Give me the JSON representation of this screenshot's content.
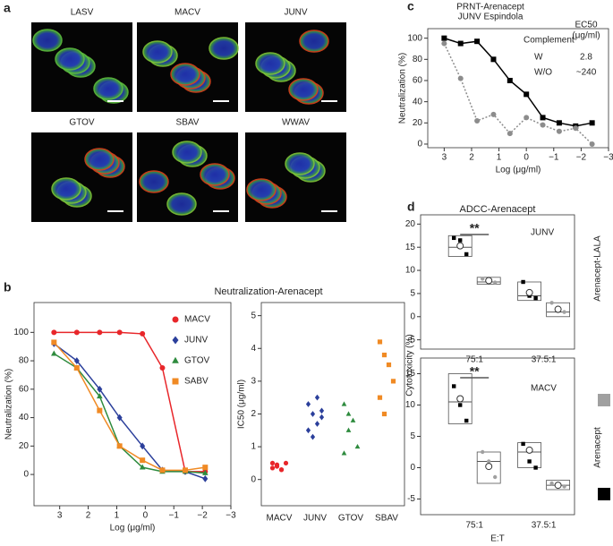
{
  "panel_labels": [
    "a",
    "b",
    "c",
    "d"
  ],
  "images": [
    "LASV",
    "MACV",
    "JUNV",
    "GTOV",
    "SBAV",
    "WWAV"
  ],
  "chart_data": [
    {
      "type": "line",
      "title": "Neutralization-Arenacept",
      "x_label": "Log (μg/ml)",
      "y_label": "Neutralization (%)",
      "x": [
        3.2,
        2.4,
        1.6,
        0.9,
        0.1,
        -0.6,
        -1.4,
        -2.1
      ],
      "xlim": [
        3.9,
        -3
      ],
      "xticks": [
        3,
        2,
        1,
        0,
        {
          "value": -1,
          "label": "−1"
        },
        {
          "value": -2,
          "label": "−2"
        },
        {
          "value": -3,
          "label": "−3"
        }
      ],
      "ylim": [
        -22,
        121
      ],
      "yticks": [
        0,
        20,
        40,
        60,
        80,
        100
      ],
      "series": [
        {
          "name": "MACV",
          "color": "#e8262a",
          "marker": "circle",
          "values": [
            100,
            100,
            100,
            100,
            99,
            75,
            2,
            2
          ]
        },
        {
          "name": "JUNV",
          "color": "#2b3f9b",
          "marker": "diamond",
          "values": [
            92,
            80,
            60,
            40,
            20,
            3,
            2,
            -3
          ]
        },
        {
          "name": "GTOV",
          "color": "#2e8b3e",
          "marker": "triangle",
          "values": [
            85,
            75,
            55,
            20,
            5,
            2,
            2,
            1
          ]
        },
        {
          "name": "SABV",
          "color": "#f08a24",
          "marker": "square",
          "values": [
            93,
            75,
            45,
            20,
            10,
            3,
            3,
            5
          ]
        }
      ]
    },
    {
      "type": "strip",
      "y_label": "IC50 (μg/ml)",
      "categories": [
        "MACV",
        "JUNV",
        "GTOV",
        "SBAV"
      ],
      "colors": [
        "#e8262a",
        "#2b3f9b",
        "#2e8b3e",
        "#f08a24"
      ],
      "markers": [
        "circle",
        "diamond",
        "triangle",
        "square"
      ],
      "ylim": [
        -0.8,
        5.4
      ],
      "yticks": [
        0,
        1,
        2,
        3,
        4,
        5
      ],
      "points": [
        [
          0.5,
          0.4,
          0.3,
          0.5,
          0.35,
          0.45,
          0.3
        ],
        [
          2.3,
          2.0,
          1.7,
          1.9,
          1.5,
          1.3,
          2.5,
          2.1
        ],
        [
          2.3,
          2.0,
          1.8,
          1.0,
          0.8,
          1.5
        ],
        [
          4.2,
          3.8,
          3.5,
          3.0,
          2.5,
          2.0
        ]
      ]
    },
    {
      "type": "line",
      "title": [
        "PRNT-Arenacept",
        "JUNV Espindola"
      ],
      "x_label": "Log (μg/ml)",
      "y_label": "Neutralization (%)",
      "legend_title": "Complement",
      "ec50_title": [
        "EC50",
        "(μg/ml)"
      ],
      "x": [
        3.0,
        2.4,
        1.8,
        1.2,
        0.6,
        0,
        -0.6,
        -1.2,
        -1.8,
        -2.4
      ],
      "xlim": [
        3.6,
        -3
      ],
      "xticks": [
        3,
        2,
        1,
        0,
        {
          "value": -1,
          "label": "−1"
        },
        {
          "value": -2,
          "label": "−2"
        },
        {
          "value": -3,
          "label": "−3"
        }
      ],
      "ylim": [
        -3.4,
        109
      ],
      "yticks": [
        0,
        20,
        40,
        60,
        80,
        100
      ],
      "series": [
        {
          "name": "W",
          "color": "#000000",
          "marker": "square",
          "dashed": false,
          "ec50": "2.8",
          "values": [
            100,
            95,
            97,
            80,
            60,
            47,
            25,
            20,
            17,
            20
          ]
        },
        {
          "name": "W/O",
          "color": "#8c8c8c",
          "marker": "circle",
          "dashed": true,
          "ec50": "~240",
          "values": [
            95,
            62,
            22,
            28,
            10,
            25,
            18,
            12,
            15,
            0
          ]
        }
      ]
    },
    {
      "type": "box",
      "title": "ADCC-Arenacept",
      "y_label": "Cytotoxicity (%)",
      "x_label": "E:T",
      "categories": [
        "75:1",
        "37.5:1"
      ],
      "series": [
        {
          "name": "Arenacept",
          "color": "#000000"
        },
        {
          "name": "Arenacept-LALA",
          "color": "#a0a0a0"
        }
      ],
      "panels": [
        {
          "label": "JUNV",
          "annotation": "**",
          "ylim": [
            -7,
            22
          ],
          "yticks": [
            -5,
            0,
            5,
            10,
            15,
            20
          ],
          "boxes": [
            [
              {
                "q1": 13,
                "median": 15,
                "q3": 17.5,
                "mean": 15.3,
                "points": [
                  17,
                  16.5,
                  13.5
                ]
              },
              {
                "q1": 3.5,
                "median": 4.5,
                "q3": 7.5,
                "mean": 5.2,
                "points": [
                  7.5,
                  4.5,
                  4
                ]
              }
            ],
            [
              {
                "q1": 7,
                "median": 7.5,
                "q3": 8.5,
                "mean": 7.8,
                "points": [
                  8.2,
                  8.2,
                  7.4
                ]
              },
              {
                "q1": 0,
                "median": 1,
                "q3": 3,
                "mean": 1.6,
                "points": [
                  3,
                  1.2,
                  1
                ]
              }
            ]
          ]
        },
        {
          "label": "MACV",
          "annotation": "**",
          "ylim": [
            -7.5,
            17.5
          ],
          "yticks": [
            -5,
            0,
            5,
            10,
            15
          ],
          "boxes": [
            [
              {
                "q1": 7,
                "median": 10.5,
                "q3": 15,
                "mean": 11,
                "points": [
                  13,
                  10,
                  7.5
                ]
              },
              {
                "q1": 0,
                "median": 2.5,
                "q3": 4,
                "mean": 2.8,
                "points": [
                  3.8,
                  1,
                  0
                ]
              }
            ],
            [
              {
                "q1": -2.5,
                "median": 1,
                "q3": 2.5,
                "mean": 0.2,
                "points": [
                  2.5,
                  1,
                  -1.5
                ]
              },
              {
                "q1": -3.5,
                "median": -2.8,
                "q3": -2,
                "mean": -2.8,
                "points": [
                  -2.5,
                  -3,
                  -3
                ]
              }
            ]
          ]
        }
      ]
    }
  ]
}
